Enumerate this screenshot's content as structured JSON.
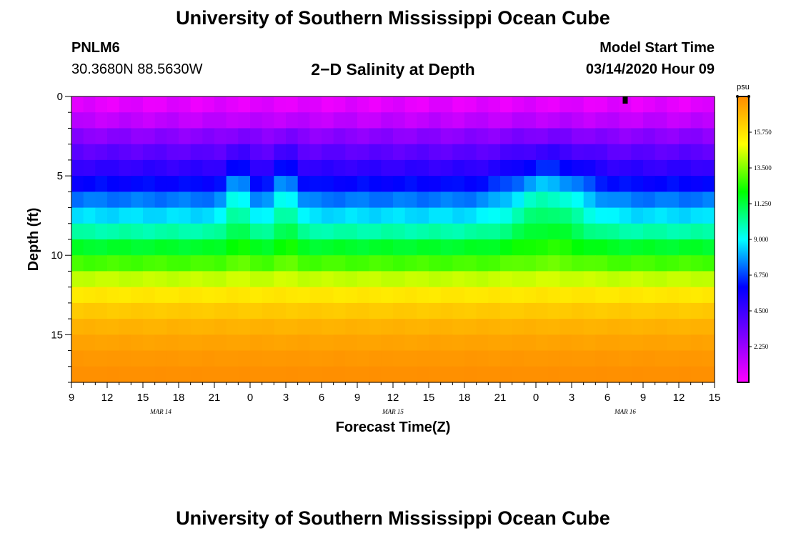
{
  "header": {
    "title": "University of Southern Mississippi Ocean Cube",
    "station_id": "PNLM6",
    "coords": "30.3680N 88.5630W",
    "chart_title": "2−D Salinity at Depth",
    "model_start_label": "Model Start Time",
    "model_start_value": "03/14/2020 Hour 09"
  },
  "footer": {
    "title": "University of Southern Mississippi Ocean Cube"
  },
  "chart_data": {
    "type": "heatmap",
    "title": "2−D Salinity at Depth",
    "xlabel": "Forecast Time(Z)",
    "ylabel": "Depth (ft)",
    "xlim": [
      0,
      54
    ],
    "ylim": [
      0,
      18
    ],
    "x_tick_labels": [
      "9",
      "12",
      "15",
      "18",
      "21",
      "0",
      "3",
      "6",
      "9",
      "12",
      "15",
      "18",
      "21",
      "0",
      "3",
      "6",
      "9",
      "12",
      "15"
    ],
    "y_tick_labels": [
      "0",
      "5",
      "10",
      "15"
    ],
    "y_tick_values": [
      0,
      5,
      10,
      15
    ],
    "date_labels": [
      {
        "text": "MAR  14",
        "x": 7.5
      },
      {
        "text": "MAR  15",
        "x": 27
      },
      {
        "text": "MAR  16",
        "x": 46.5
      }
    ],
    "depth_levels_ft": [
      0.5,
      1.5,
      2.5,
      3.5,
      4.5,
      5.5,
      6.5,
      7.5,
      8.5,
      9.5,
      10.5,
      11.5,
      12.5,
      13.5,
      14.5,
      15.5,
      16.5,
      17.5
    ],
    "base_salinity_profile_psu": [
      0.6,
      1.4,
      2.6,
      3.7,
      4.8,
      6.0,
      7.4,
      8.6,
      10.0,
      11.5,
      12.8,
      14.3,
      15.6,
      16.4,
      17.0,
      17.4,
      17.7,
      17.9
    ],
    "time_features": [
      {
        "center_hour": 14,
        "amplitude_psu": 2.2,
        "width_hours": 1
      },
      {
        "center_hour": 18,
        "amplitude_psu": 2.2,
        "width_hours": 1
      },
      {
        "center_hour": 40,
        "amplitude_psu": 2.5,
        "width_hours": 3.5
      }
    ],
    "colorbar": {
      "unit": "psu",
      "tick_labels": [
        "2.250",
        "4.500",
        "6.750",
        "9.000",
        "11.250",
        "13.500",
        "15.750"
      ],
      "tick_values": [
        2.25,
        4.5,
        6.75,
        9.0,
        11.25,
        13.5,
        15.75
      ],
      "range": [
        0,
        18
      ],
      "colors": [
        "#ff00ff",
        "#7a00ff",
        "#0000ff",
        "#00ffff",
        "#00ff00",
        "#ffff00",
        "#ff8c00"
      ]
    },
    "marker_hour": 46.5
  }
}
